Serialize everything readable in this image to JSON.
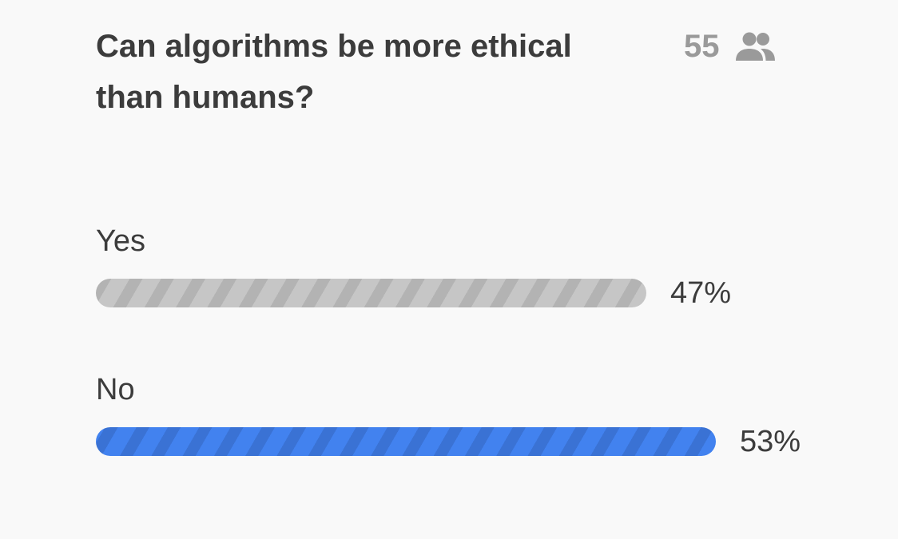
{
  "poll": {
    "question": "Can algorithms be more ethical than humans?",
    "participant_count": "55",
    "participant_icon": "people-icon",
    "options": [
      {
        "label": "Yes",
        "percent_label": "47%",
        "fraction": 0.47,
        "color": "#c6c6c6",
        "stripe_color": "#b3b3b3"
      },
      {
        "label": "No",
        "percent_label": "53%",
        "fraction": 0.53,
        "color": "#4282ef",
        "stripe_color": "#3a72d4"
      }
    ]
  }
}
